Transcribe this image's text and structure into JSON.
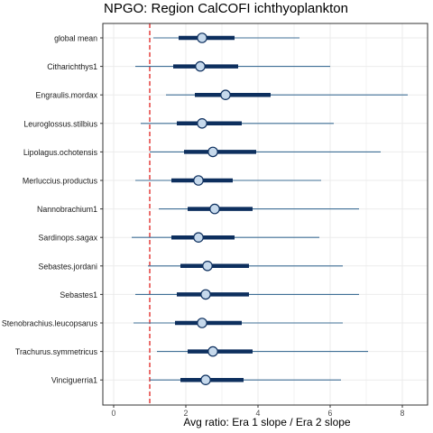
{
  "chart_data": {
    "type": "forest",
    "title": "NPGO: Region CalCOFI ichthyoplankton",
    "xlabel": "Avg ratio: Era 1 slope / Era 2 slope",
    "ylabel": "",
    "xlim": [
      -0.3,
      8.7
    ],
    "xticks": [
      0,
      2,
      4,
      6,
      8
    ],
    "reference_line": 1,
    "grid": true,
    "colors": {
      "thick_interval": "#0d2f5e",
      "thin_interval": "#3f6f96",
      "point_fill": "#c6d9ec",
      "point_stroke": "#0d2f5e",
      "reference_line": "#e0201e",
      "grid": "#ebebeb",
      "panel_border": "#333333"
    },
    "categories": [
      "global mean",
      "Citharichthys1",
      "Engraulis.mordax",
      "Leuroglossus.stilbius",
      "Lipolagus.ochotensis",
      "Merluccius.productus",
      "Nannobrachium1",
      "Sardinops.sagax",
      "Sebastes.jordani",
      "Sebastes1",
      "Stenobrachius.leucopsarus",
      "Trachurus.symmetricus",
      "Vinciguerria1"
    ],
    "estimate": [
      2.45,
      2.4,
      3.1,
      2.45,
      2.75,
      2.35,
      2.8,
      2.35,
      2.6,
      2.55,
      2.45,
      2.75,
      2.55
    ],
    "inner_low": [
      1.8,
      1.65,
      2.25,
      1.75,
      1.95,
      1.6,
      2.05,
      1.6,
      1.85,
      1.75,
      1.7,
      2.05,
      1.85
    ],
    "inner_high": [
      3.35,
      3.45,
      4.35,
      3.55,
      3.95,
      3.3,
      3.85,
      3.35,
      3.75,
      3.75,
      3.55,
      3.85,
      3.6
    ],
    "outer_low": [
      1.1,
      0.6,
      1.45,
      0.75,
      1.0,
      0.6,
      1.25,
      0.5,
      0.95,
      0.6,
      0.55,
      1.2,
      1.0
    ],
    "outer_high": [
      5.15,
      6.0,
      8.15,
      6.1,
      7.4,
      5.75,
      6.8,
      5.7,
      6.35,
      6.8,
      6.35,
      7.05,
      6.3
    ]
  }
}
